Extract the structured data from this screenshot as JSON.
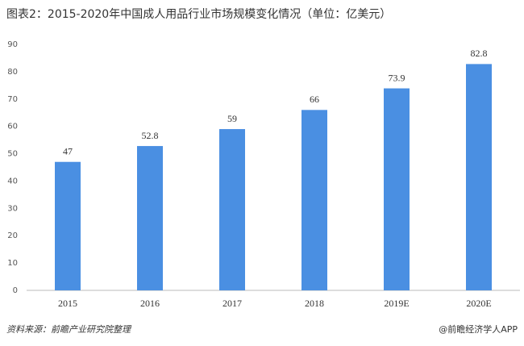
{
  "chart_data": {
    "type": "bar",
    "title": "图表2：2015-2020年中国成人用品行业市场规模变化情况（单位：亿美元）",
    "categories": [
      "2015",
      "2016",
      "2017",
      "2018",
      "2019E",
      "2020E"
    ],
    "values": [
      47,
      52.8,
      59,
      66,
      73.9,
      82.8
    ],
    "color": "#4a8fe2",
    "ylim": [
      0,
      90
    ],
    "yticks": [
      0,
      10,
      20,
      30,
      40,
      50,
      60,
      70,
      80,
      90
    ],
    "grid": false,
    "source": "资料来源：前瞻产业研究院整理",
    "credit": "@前瞻经济学人APP"
  }
}
